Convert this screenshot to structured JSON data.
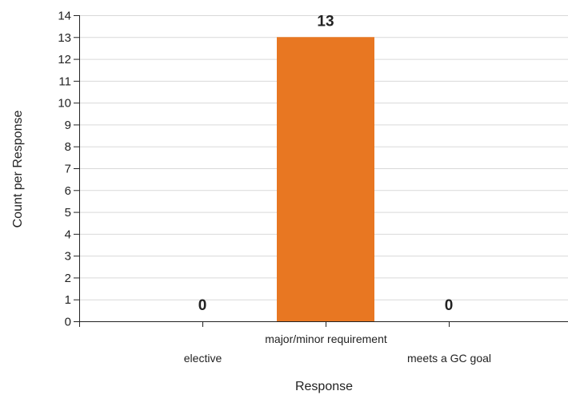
{
  "chart_data": {
    "type": "bar",
    "categories": [
      "elective",
      "major/minor requirement",
      "meets a GC goal"
    ],
    "values": [
      0,
      13,
      0
    ],
    "data_labels": [
      "0",
      "13",
      "0"
    ],
    "xlabel": "Response",
    "ylabel": "Count per Response",
    "ylim": [
      0,
      14
    ],
    "yticks": [
      0,
      1,
      2,
      3,
      4,
      5,
      6,
      7,
      8,
      9,
      10,
      11,
      12,
      13,
      14
    ],
    "grid": true,
    "legend": "none",
    "bar_color": "#e87722",
    "grid_color": "#d9d9d9",
    "axis_color": "#222222"
  }
}
